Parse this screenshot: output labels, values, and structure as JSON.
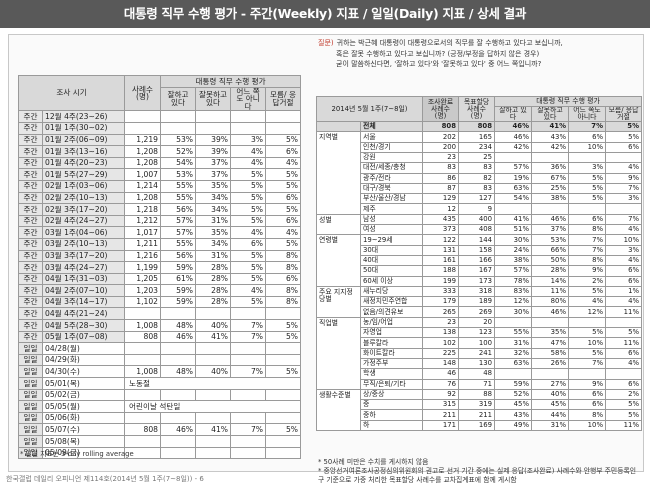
{
  "header": {
    "title": "대통령 직무 수행 평가 - 주간(Weekly) 지표 / 일일(Daily) 지표 / 상세 결과"
  },
  "left_table": {
    "columns": [
      "조사 시기",
      "사례수 (명)",
      "대통령 직무 수행 평가",
      "잘하고 있다",
      "잘못하고 있다",
      "어느 쪽도 아니다",
      "모름/ 응답거절"
    ],
    "weekly_rows": [
      [
        "주간",
        "12월 4주(23~26)"
      ],
      [
        "주간",
        "01월 1주(30~02)"
      ],
      [
        "주간",
        "01월 2주(06~09)",
        "1,219",
        "53%",
        "39%",
        "3%",
        "5%"
      ],
      [
        "주간",
        "01월 3주(13~16)",
        "1,208",
        "52%",
        "39%",
        "4%",
        "6%"
      ],
      [
        "주간",
        "01월 4주(20~23)",
        "1,208",
        "54%",
        "37%",
        "4%",
        "4%"
      ],
      [
        "주간",
        "01월 5주(27~29)",
        "1,007",
        "53%",
        "37%",
        "5%",
        "5%"
      ],
      [
        "주간",
        "02월 1주(03~06)",
        "1,214",
        "55%",
        "35%",
        "5%",
        "5%"
      ],
      [
        "주간",
        "02월 2주(10~13)",
        "1,208",
        "55%",
        "34%",
        "5%",
        "6%"
      ],
      [
        "주간",
        "02월 3주(17~20)",
        "1,218",
        "56%",
        "34%",
        "5%",
        "5%"
      ],
      [
        "주간",
        "02월 4주(24~27)",
        "1,212",
        "57%",
        "31%",
        "5%",
        "6%"
      ],
      [
        "주간",
        "03월 1주(04~06)",
        "1,017",
        "57%",
        "35%",
        "4%",
        "4%"
      ],
      [
        "주간",
        "03월 2주(10~13)",
        "1,211",
        "55%",
        "34%",
        "6%",
        "5%"
      ],
      [
        "주간",
        "03월 3주(17~20)",
        "1,216",
        "56%",
        "31%",
        "5%",
        "8%"
      ],
      [
        "주간",
        "03월 4주(24~27)",
        "1,199",
        "59%",
        "28%",
        "5%",
        "8%"
      ],
      [
        "주간",
        "04월 1주(31~03)",
        "1,205",
        "61%",
        "28%",
        "5%",
        "6%"
      ],
      [
        "주간",
        "04월 2주(07~10)",
        "1,203",
        "59%",
        "28%",
        "4%",
        "8%"
      ],
      [
        "주간",
        "04월 3주(14~17)",
        "1,102",
        "59%",
        "28%",
        "5%",
        "8%"
      ],
      [
        "주간",
        "04월 4주(21~24)"
      ],
      [
        "주간",
        "04월 5주(28~30)",
        "1,008",
        "48%",
        "40%",
        "7%",
        "5%"
      ],
      [
        "주간",
        "05월 1주(07~08)",
        "808",
        "46%",
        "41%",
        "7%",
        "5%"
      ]
    ],
    "daily_rows": [
      [
        "일일",
        "04/28(월)"
      ],
      [
        "일일",
        "04/29(화)"
      ],
      [
        "일일",
        "04/30(수)",
        "1,008",
        "48%",
        "40%",
        "7%",
        "5%"
      ],
      [
        "일일",
        "05/01(목)",
        "노동절"
      ],
      [
        "일일",
        "05/02(금)"
      ],
      [
        "일일",
        "05/05(월)",
        "어린이날 석탄일"
      ],
      [
        "일일",
        "05/06(화)"
      ],
      [
        "일일",
        "05/07(수)",
        "808",
        "46%",
        "41%",
        "7%",
        "5%"
      ],
      [
        "일일",
        "05/08(목)"
      ],
      [
        "일일",
        "05/09(금)"
      ]
    ],
    "note": "* 일일 지표는 3-day rolling average"
  },
  "question": {
    "prefix": "질문)",
    "lines": [
      "귀하는 박근혜 대통령이 대통령으로서의 직무를 잘 수행하고 있다고 보십니까,",
      "혹은 잘못 수행하고 있다고 보십니까? (긍정/부정을 답하지 않은 경우)",
      "굳이 말씀하신다면, '잘하고 있다'와 '잘못하고 있다' 중 어느 쪽입니까?"
    ]
  },
  "right_table": {
    "columns": [
      "2014년 5월 1주(7~8일)",
      "조사완료 사례수 (명)",
      "목표할당 사례수 (명)",
      "대통령 직무 수행 평가",
      "잘하고 있다",
      "잘못하고 있다",
      "어느 쪽도 아니다",
      "모름/ 응답거절"
    ],
    "total": [
      "전체",
      "808",
      "808",
      "46%",
      "41%",
      "7%",
      "5%"
    ],
    "groups": [
      {
        "name": "지역별",
        "rows": [
          [
            "서울",
            "202",
            "165",
            "46%",
            "43%",
            "6%",
            "5%"
          ],
          [
            "인천/경기",
            "200",
            "234",
            "42%",
            "42%",
            "10%",
            "6%"
          ],
          [
            "강원",
            "23",
            "25"
          ],
          [
            "대전/세종/충청",
            "83",
            "83",
            "57%",
            "36%",
            "3%",
            "4%"
          ],
          [
            "광주/전라",
            "86",
            "82",
            "19%",
            "67%",
            "5%",
            "9%"
          ],
          [
            "대구/경북",
            "87",
            "83",
            "63%",
            "25%",
            "5%",
            "7%"
          ],
          [
            "부산/울산/경남",
            "129",
            "127",
            "54%",
            "38%",
            "5%",
            "3%"
          ],
          [
            "제주",
            "12",
            "9"
          ]
        ]
      },
      {
        "name": "성별",
        "rows": [
          [
            "남성",
            "435",
            "400",
            "41%",
            "46%",
            "6%",
            "7%"
          ],
          [
            "여성",
            "373",
            "408",
            "51%",
            "37%",
            "8%",
            "4%"
          ]
        ]
      },
      {
        "name": "연령별",
        "rows": [
          [
            "19~29세",
            "122",
            "144",
            "30%",
            "53%",
            "7%",
            "10%"
          ],
          [
            "30대",
            "131",
            "158",
            "24%",
            "66%",
            "7%",
            "3%"
          ],
          [
            "40대",
            "161",
            "166",
            "38%",
            "50%",
            "8%",
            "4%"
          ],
          [
            "50대",
            "188",
            "167",
            "57%",
            "28%",
            "9%",
            "6%"
          ],
          [
            "60세 이상",
            "199",
            "173",
            "78%",
            "14%",
            "2%",
            "6%"
          ]
        ]
      },
      {
        "name": "주요 지지정당별",
        "rows": [
          [
            "새누리당",
            "333",
            "318",
            "83%",
            "11%",
            "5%",
            "1%"
          ],
          [
            "새정치민주연합",
            "179",
            "189",
            "12%",
            "80%",
            "4%",
            "4%"
          ],
          [
            "없음/의견유보",
            "265",
            "269",
            "30%",
            "46%",
            "12%",
            "11%"
          ]
        ]
      },
      {
        "name": "직업별",
        "rows": [
          [
            "농/임/어업",
            "23",
            "20"
          ],
          [
            "자영업",
            "138",
            "123",
            "55%",
            "35%",
            "5%",
            "5%"
          ],
          [
            "블루칼라",
            "102",
            "100",
            "31%",
            "47%",
            "10%",
            "11%"
          ],
          [
            "화이트칼라",
            "225",
            "241",
            "32%",
            "58%",
            "5%",
            "6%"
          ],
          [
            "가정주부",
            "148",
            "130",
            "63%",
            "26%",
            "7%",
            "4%"
          ],
          [
            "학생",
            "46",
            "48"
          ],
          [
            "무직/은퇴/기타",
            "76",
            "71",
            "59%",
            "27%",
            "9%",
            "6%"
          ]
        ]
      },
      {
        "name": "생활수준별",
        "rows": [
          [
            "상/중상",
            "92",
            "88",
            "52%",
            "40%",
            "6%",
            "2%"
          ],
          [
            "중",
            "315",
            "319",
            "45%",
            "45%",
            "6%",
            "5%"
          ],
          [
            "중하",
            "211",
            "211",
            "43%",
            "44%",
            "8%",
            "5%"
          ],
          [
            "하",
            "171",
            "169",
            "49%",
            "31%",
            "10%",
            "11%"
          ]
        ]
      }
    ]
  },
  "notes": [
    "* 50사례 미만은 수치를 게시하지 않음",
    "* 중앙선거여론조사공정심의위원회의 권고로 선거 기간 중에는 실제 응답(조사완료) 사례수와 안행부 주민등록인구 기준으로 가중 처리한 목표할당 사례수를 교차집계표에 함께 게시함"
  ],
  "footer": "한국갤럽 데일리 오피니언 제114호(2014년 5월 1주(7~8일)) - 6"
}
